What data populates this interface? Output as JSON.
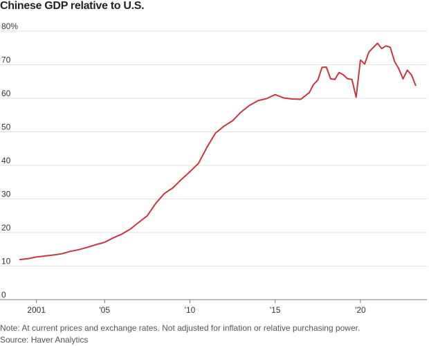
{
  "title": "Chinese GDP relative to U.S.",
  "note": "Note: At current prices and exchange rates. Not adjusted for inflation or relative purchasing power.",
  "source": "Source: Haver Analytics",
  "colors": {
    "line": "#c6363f",
    "grid": "#e2e2e2"
  },
  "chart_data": {
    "type": "line",
    "title": "Chinese GDP relative to U.S.",
    "xlabel": "",
    "ylabel": "",
    "ylim": [
      0,
      80
    ],
    "xlim": [
      2000.0,
      2023.9
    ],
    "yticks": [
      {
        "value": 80,
        "label": "80%"
      },
      {
        "value": 70,
        "label": "70"
      },
      {
        "value": 60,
        "label": "60"
      },
      {
        "value": 50,
        "label": "50"
      },
      {
        "value": 40,
        "label": "40"
      },
      {
        "value": 30,
        "label": "30"
      },
      {
        "value": 20,
        "label": "20"
      },
      {
        "value": 10,
        "label": "10"
      },
      {
        "value": 0,
        "label": "0"
      }
    ],
    "xticks": [
      {
        "value": 2001,
        "label": "2001"
      },
      {
        "value": 2005,
        "label": "'05"
      },
      {
        "value": 2010,
        "label": "'10"
      },
      {
        "value": 2015,
        "label": "'15"
      },
      {
        "value": 2020,
        "label": "'20"
      }
    ],
    "grid": true,
    "series": [
      {
        "points": [
          [
            2000.0,
            11.9
          ],
          [
            2000.5,
            12.2
          ],
          [
            2001.0,
            12.7
          ],
          [
            2001.5,
            13.0
          ],
          [
            2002.0,
            13.3
          ],
          [
            2002.5,
            13.7
          ],
          [
            2003.0,
            14.4
          ],
          [
            2003.5,
            14.9
          ],
          [
            2004.0,
            15.6
          ],
          [
            2004.5,
            16.4
          ],
          [
            2005.0,
            17.1
          ],
          [
            2005.5,
            18.4
          ],
          [
            2006.0,
            19.5
          ],
          [
            2006.5,
            21.0
          ],
          [
            2007.0,
            23.0
          ],
          [
            2007.5,
            25.0
          ],
          [
            2008.0,
            28.7
          ],
          [
            2008.5,
            31.6
          ],
          [
            2009.0,
            33.3
          ],
          [
            2009.5,
            35.8
          ],
          [
            2010.0,
            38.1
          ],
          [
            2010.5,
            40.6
          ],
          [
            2011.0,
            45.4
          ],
          [
            2011.5,
            49.6
          ],
          [
            2012.0,
            51.7
          ],
          [
            2012.5,
            53.3
          ],
          [
            2013.0,
            55.9
          ],
          [
            2013.5,
            57.9
          ],
          [
            2014.0,
            59.3
          ],
          [
            2014.5,
            59.9
          ],
          [
            2015.0,
            61.1
          ],
          [
            2015.5,
            60.1
          ],
          [
            2016.0,
            59.8
          ],
          [
            2016.5,
            59.7
          ],
          [
            2017.0,
            61.7
          ],
          [
            2017.25,
            64.1
          ],
          [
            2017.5,
            65.4
          ],
          [
            2017.75,
            69.2
          ],
          [
            2018.0,
            69.3
          ],
          [
            2018.25,
            65.8
          ],
          [
            2018.5,
            65.6
          ],
          [
            2018.75,
            67.7
          ],
          [
            2019.0,
            67.0
          ],
          [
            2019.25,
            65.8
          ],
          [
            2019.5,
            65.6
          ],
          [
            2019.75,
            60.3
          ],
          [
            2020.0,
            71.4
          ],
          [
            2020.25,
            70.2
          ],
          [
            2020.5,
            73.8
          ],
          [
            2021.0,
            76.4
          ],
          [
            2021.25,
            74.8
          ],
          [
            2021.5,
            75.6
          ],
          [
            2021.75,
            75.2
          ],
          [
            2022.0,
            71.0
          ],
          [
            2022.25,
            68.8
          ],
          [
            2022.5,
            65.8
          ],
          [
            2022.75,
            68.4
          ],
          [
            2023.0,
            66.9
          ],
          [
            2023.25,
            63.7
          ]
        ]
      }
    ]
  }
}
